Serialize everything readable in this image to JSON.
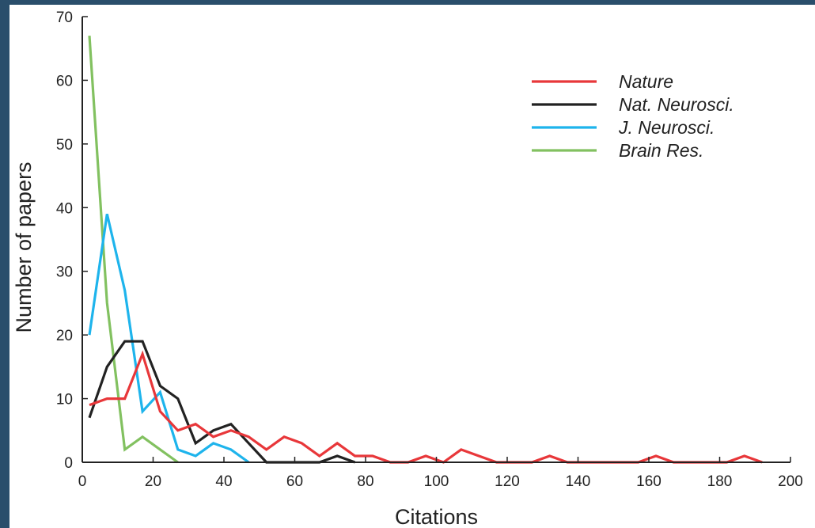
{
  "chart_data": {
    "type": "line",
    "title": "",
    "xlabel": "Citations",
    "ylabel": "Number of papers",
    "xlim": [
      0,
      200
    ],
    "ylim": [
      0,
      70
    ],
    "xticks": [
      "0",
      "20",
      "40",
      "60",
      "80",
      "100",
      "120",
      "140",
      "160",
      "180",
      "200"
    ],
    "yticks": [
      "0",
      "10",
      "20",
      "30",
      "40",
      "50",
      "60",
      "70"
    ],
    "grid": false,
    "legend_position": "top-right",
    "series": [
      {
        "name": "Nature",
        "color": "#e8373a",
        "x": [
          2,
          7,
          12,
          17,
          22,
          27,
          32,
          37,
          42,
          47,
          52,
          57,
          62,
          67,
          72,
          77,
          82,
          87,
          92,
          97,
          102,
          107,
          112,
          117,
          122,
          127,
          132,
          137,
          142,
          147,
          152,
          157,
          162,
          167,
          172,
          177,
          182,
          187,
          192
        ],
        "y": [
          9,
          10,
          10,
          17,
          8,
          5,
          6,
          4,
          5,
          4,
          2,
          4,
          3,
          1,
          3,
          1,
          1,
          0,
          0,
          1,
          0,
          2,
          1,
          0,
          0,
          0,
          1,
          0,
          0,
          0,
          0,
          0,
          1,
          0,
          0,
          0,
          0,
          1,
          0
        ]
      },
      {
        "name": "Nat. Neurosci.",
        "color": "#222222",
        "x": [
          2,
          7,
          12,
          17,
          22,
          27,
          32,
          37,
          42,
          47,
          52,
          57,
          62,
          67,
          72,
          77
        ],
        "y": [
          7,
          15,
          19,
          19,
          12,
          10,
          3,
          5,
          6,
          3,
          0,
          0,
          0,
          0,
          1,
          0
        ]
      },
      {
        "name": "J. Neurosci.",
        "color": "#1eb4ec",
        "x": [
          2,
          7,
          12,
          17,
          22,
          27,
          32,
          37,
          42,
          47
        ],
        "y": [
          20,
          39,
          27,
          8,
          11,
          2,
          1,
          3,
          2,
          0
        ]
      },
      {
        "name": "Brain Res.",
        "color": "#82c160",
        "x": [
          2,
          7,
          12,
          17,
          22,
          27
        ],
        "y": [
          67,
          25,
          2,
          4,
          2,
          0
        ]
      }
    ]
  }
}
